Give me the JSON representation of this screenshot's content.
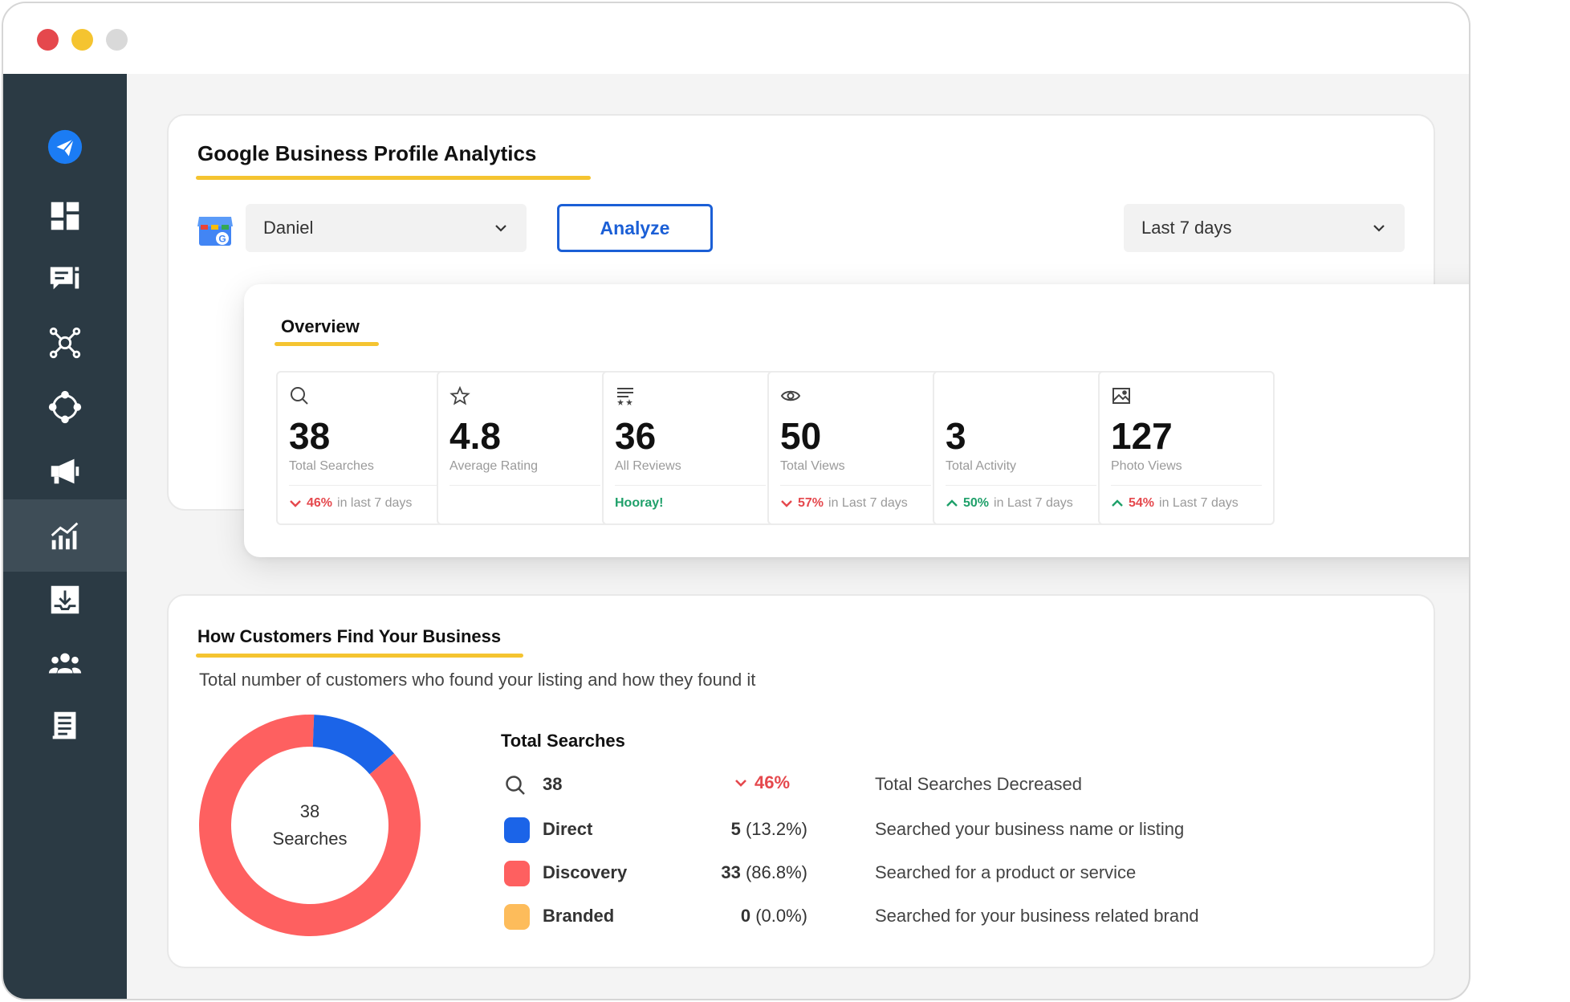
{
  "window": {
    "controls": [
      "close",
      "minimize",
      "zoom"
    ]
  },
  "sidebar": {
    "items": [
      {
        "icon": "paper-plane-icon",
        "active": false
      },
      {
        "icon": "dashboard-grid-icon",
        "active": false
      },
      {
        "icon": "reviews-chat-icon",
        "active": false
      },
      {
        "icon": "network-nodes-icon",
        "active": false
      },
      {
        "icon": "integrations-circle-icon",
        "active": false
      },
      {
        "icon": "megaphone-icon",
        "active": false
      },
      {
        "icon": "analytics-bar-icon",
        "active": true
      },
      {
        "icon": "download-tray-icon",
        "active": false
      },
      {
        "icon": "team-users-icon",
        "active": false
      },
      {
        "icon": "document-list-icon",
        "active": false
      }
    ]
  },
  "gbp": {
    "title": "Google Business Profile Analytics",
    "location_select": "Daniel",
    "analyze_label": "Analyze",
    "range_select": "Last 7 days"
  },
  "overview": {
    "title": "Overview",
    "stats": [
      {
        "icon": "search-icon",
        "value": "38",
        "label": "Total Searches",
        "trend": "down",
        "pct": "46%",
        "suffix": "in last 7 days"
      },
      {
        "icon": "star-icon",
        "value": "4.8",
        "label": "Average Rating",
        "trend": "none",
        "pct": "",
        "suffix": ""
      },
      {
        "icon": "reviews-icon",
        "value": "36",
        "label": "All Reviews",
        "trend": "note",
        "pct": "Hooray!",
        "suffix": ""
      },
      {
        "icon": "eye-icon",
        "value": "50",
        "label": "Total Views",
        "trend": "down",
        "pct": "57%",
        "suffix": "in Last 7 days"
      },
      {
        "icon": "none",
        "value": "3",
        "label": "Total Activity",
        "trend": "up",
        "pct": "50%",
        "suffix": "in Last 7 days"
      },
      {
        "icon": "image-icon",
        "value": "127",
        "label": "Photo Views",
        "trend": "up",
        "pct": "54%",
        "suffix": "in Last 7 days"
      }
    ]
  },
  "find": {
    "title": "How Customers Find Your Business",
    "subtitle": "Total number of customers who found your listing and how they found it",
    "donut_value": "38",
    "donut_label": "Searches",
    "total_label": "Total Searches",
    "total_value": "38",
    "total_change": "46%",
    "total_desc": "Total Searches Decreased",
    "rows": [
      {
        "name": "Direct",
        "count": "5",
        "share": "(13.2%)",
        "desc": "Searched your business name or listing"
      },
      {
        "name": "Discovery",
        "count": "33",
        "share": "(86.8%)",
        "desc": "Searched for a product or service"
      },
      {
        "name": "Branded",
        "count": "0",
        "share": "(0.0%)",
        "desc": "Searched for your business related brand"
      }
    ]
  },
  "chart_data": {
    "type": "pie",
    "categories": [
      "Direct",
      "Discovery",
      "Branded"
    ],
    "values": [
      5,
      33,
      0
    ],
    "colors": [
      "#1b64e8",
      "#fe6060",
      "#fdbc5b"
    ]
  },
  "colors": {
    "accent_yellow": "#f5c430",
    "primary_blue": "#1b5fd6",
    "sidebar_bg": "#2b3a44",
    "down_red": "#e5484d",
    "up_green": "#1fa06a"
  }
}
